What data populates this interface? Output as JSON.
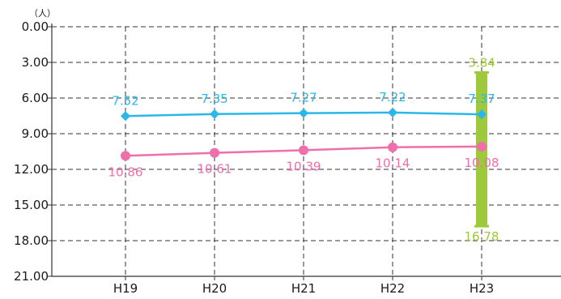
{
  "chart_data": {
    "type": "line",
    "unit_label": "（人）",
    "y_axis": {
      "min": 0,
      "max": 21,
      "inverted": true,
      "ticks": [
        0,
        3,
        6,
        9,
        12,
        15,
        18,
        21
      ],
      "tick_labels": [
        "0.00",
        "3.00",
        "6.00",
        "9.00",
        "12.00",
        "15.00",
        "18.00",
        "21.00"
      ]
    },
    "categories": [
      "H19",
      "H20",
      "H21",
      "H22",
      "H23"
    ],
    "grid": true,
    "series": [
      {
        "color": "#2bb7ea",
        "marker": "diamond",
        "values": [
          7.52,
          7.35,
          7.27,
          7.22,
          7.37
        ],
        "labels": [
          "7.52",
          "7.35",
          "7.27",
          "7.22",
          "7.37"
        ],
        "label_position": "above"
      },
      {
        "color": "#ef6fab",
        "marker": "circle",
        "values": [
          10.86,
          10.61,
          10.39,
          10.14,
          10.08
        ],
        "labels": [
          "10.86",
          "10.61",
          "10.39",
          "10.14",
          "10.08"
        ],
        "label_position": "below"
      }
    ],
    "range_bar": {
      "category": "H23",
      "color": "#9dc93a",
      "min": 3.84,
      "max": 16.78,
      "min_label": "3.84",
      "max_label": "16.78"
    }
  }
}
